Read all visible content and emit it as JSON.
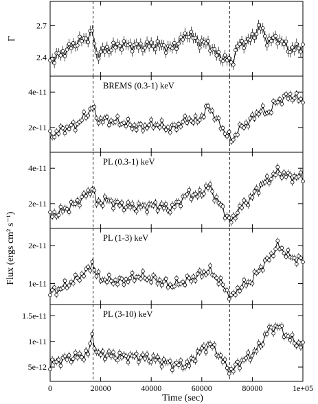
{
  "chart_data": {
    "type": "scatter",
    "shared_x": {
      "label": "Time (sec)",
      "range": [
        0,
        100000
      ],
      "ticks": [
        0,
        20000,
        40000,
        60000,
        80000,
        100000
      ],
      "tick_labels": [
        "0",
        "20000",
        "40000",
        "60000",
        "80000",
        "1e+05"
      ]
    },
    "shared_y_label": "Flux (ergs cm² s⁻¹)",
    "vertical_dashed_lines": [
      17000,
      71000
    ],
    "panels": [
      {
        "panel_label": "",
        "ylabel": "Γ",
        "ylim": [
          2.22,
          2.93
        ],
        "ticks": [
          2.4,
          2.7
        ],
        "tick_labels": [
          "2.4",
          "2.7"
        ],
        "err": 0.05,
        "x": [
          0,
          5000,
          10000,
          15000,
          17000,
          18000,
          22000,
          28000,
          35000,
          42000,
          48000,
          55000,
          58000,
          63000,
          66000,
          70000,
          72000,
          74000,
          80000,
          83000,
          86000,
          90000,
          95000,
          100000
        ],
        "y": [
          2.37,
          2.44,
          2.53,
          2.59,
          2.65,
          2.42,
          2.47,
          2.52,
          2.5,
          2.52,
          2.48,
          2.63,
          2.55,
          2.52,
          2.42,
          2.38,
          2.34,
          2.5,
          2.58,
          2.7,
          2.55,
          2.58,
          2.47,
          2.5
        ]
      },
      {
        "panel_label": "BREMS (0.3-1) keV",
        "ylabel": "",
        "ylim": [
          6e-12,
          4.9e-11
        ],
        "ticks": [
          2e-11,
          4e-11
        ],
        "tick_labels": [
          "2e-11",
          "4e-11"
        ],
        "err": 1.8e-12,
        "x": [
          0,
          5000,
          10000,
          15000,
          17000,
          18000,
          22000,
          28000,
          35000,
          42000,
          48000,
          55000,
          58000,
          63000,
          66000,
          70000,
          72000,
          74000,
          80000,
          83000,
          86000,
          90000,
          95000,
          100000
        ],
        "y": [
          1.5e-11,
          1.9e-11,
          2.1e-11,
          2.8e-11,
          3.3e-11,
          2.5e-11,
          2.4e-11,
          2.3e-11,
          2e-11,
          2.2e-11,
          1.9e-11,
          2.5e-11,
          2.3e-11,
          3.2e-11,
          2.4e-11,
          1.6e-11,
          1.2e-11,
          1.8e-11,
          2.5e-11,
          3e-11,
          2.8e-11,
          3.5e-11,
          3.8e-11,
          3.5e-11
        ]
      },
      {
        "panel_label": "PL (0.3-1) keV",
        "ylabel": "",
        "ylim": [
          6e-12,
          4.9e-11
        ],
        "ticks": [
          2e-11,
          4e-11
        ],
        "tick_labels": [
          "2e-11",
          "4e-11"
        ],
        "err": 2e-12,
        "x": [
          0,
          5000,
          10000,
          15000,
          17000,
          18000,
          22000,
          28000,
          35000,
          42000,
          48000,
          55000,
          58000,
          63000,
          66000,
          70000,
          72000,
          74000,
          80000,
          83000,
          86000,
          90000,
          95000,
          100000
        ],
        "y": [
          1.3e-11,
          1.6e-11,
          2e-11,
          2.6e-11,
          3e-11,
          2e-11,
          2.2e-11,
          1.9e-11,
          1.8e-11,
          1.9e-11,
          1.7e-11,
          2.6e-11,
          2.4e-11,
          3e-11,
          2.2e-11,
          1.3e-11,
          9e-12,
          1.6e-11,
          2.4e-11,
          3e-11,
          3.3e-11,
          3.8e-11,
          3.5e-11,
          3.5e-11
        ]
      },
      {
        "panel_label": "PL (1-3) keV",
        "ylabel": "",
        "ylim": [
          4.5e-12,
          2.45e-11
        ],
        "ticks": [
          1e-11,
          2e-11
        ],
        "tick_labels": [
          "1e-11",
          "2e-11"
        ],
        "err": 8e-13,
        "x": [
          0,
          5000,
          10000,
          15000,
          17000,
          18000,
          22000,
          28000,
          35000,
          42000,
          48000,
          55000,
          58000,
          63000,
          66000,
          70000,
          72000,
          74000,
          80000,
          83000,
          86000,
          90000,
          95000,
          100000
        ],
        "y": [
          7.5e-12,
          9e-12,
          1.1e-11,
          1.35e-11,
          1.6e-11,
          1.2e-11,
          1.1e-11,
          1.05e-11,
          1.2e-11,
          1.1e-11,
          9.5e-12,
          1.1e-11,
          1.2e-11,
          1.35e-11,
          1.15e-11,
          8e-12,
          6e-12,
          8.5e-12,
          1.1e-11,
          1.4e-11,
          1.6e-11,
          2e-11,
          1.7e-11,
          1.6e-11
        ]
      },
      {
        "panel_label": "PL (3-10) keV",
        "ylabel": "",
        "ylim": [
          2.2e-12,
          1.72e-11
        ],
        "ticks": [
          5e-12,
          1e-11,
          1.5e-11
        ],
        "tick_labels": [
          "5e-12",
          "1e-11",
          "1.5e-11"
        ],
        "err": 7e-13,
        "x": [
          0,
          5000,
          10000,
          15000,
          17000,
          18000,
          22000,
          28000,
          35000,
          42000,
          48000,
          55000,
          58000,
          63000,
          66000,
          70000,
          72000,
          74000,
          80000,
          83000,
          86000,
          90000,
          95000,
          100000
        ],
        "y": [
          5.5e-12,
          6.5e-12,
          7e-12,
          7.5e-12,
          1.2e-11,
          7.5e-12,
          7.5e-12,
          7e-12,
          7e-12,
          6.5e-12,
          5.5e-12,
          5.5e-12,
          7.5e-12,
          9.5e-12,
          8e-12,
          5e-12,
          4e-12,
          5.5e-12,
          7.5e-12,
          9e-12,
          1.2e-11,
          1.3e-11,
          1.05e-11,
          9e-12
        ]
      }
    ]
  }
}
